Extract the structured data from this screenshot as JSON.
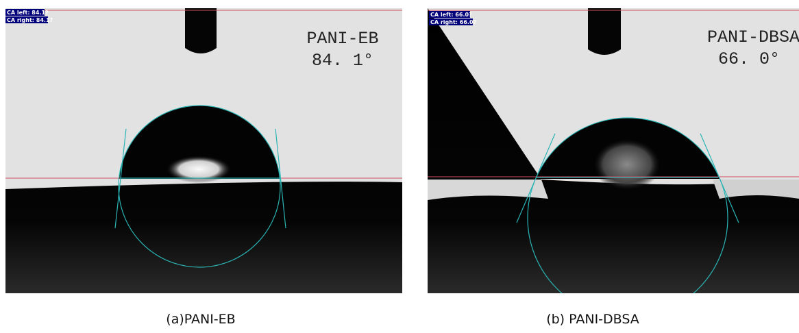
{
  "panels": [
    {
      "ca_left": "CA left: 84.1?",
      "ca_right": "CA right: 84.1?",
      "sample": "PANI-EB",
      "angle": "84. 1°",
      "caption": "(a)PANI-EB"
    },
    {
      "ca_left": "CA left: 66.0?",
      "ca_right": "CA right: 66.0?",
      "sample": "PANI-DBSA",
      "angle": "66. 0°",
      "caption": "(b) PANI-DBSA"
    }
  ]
}
